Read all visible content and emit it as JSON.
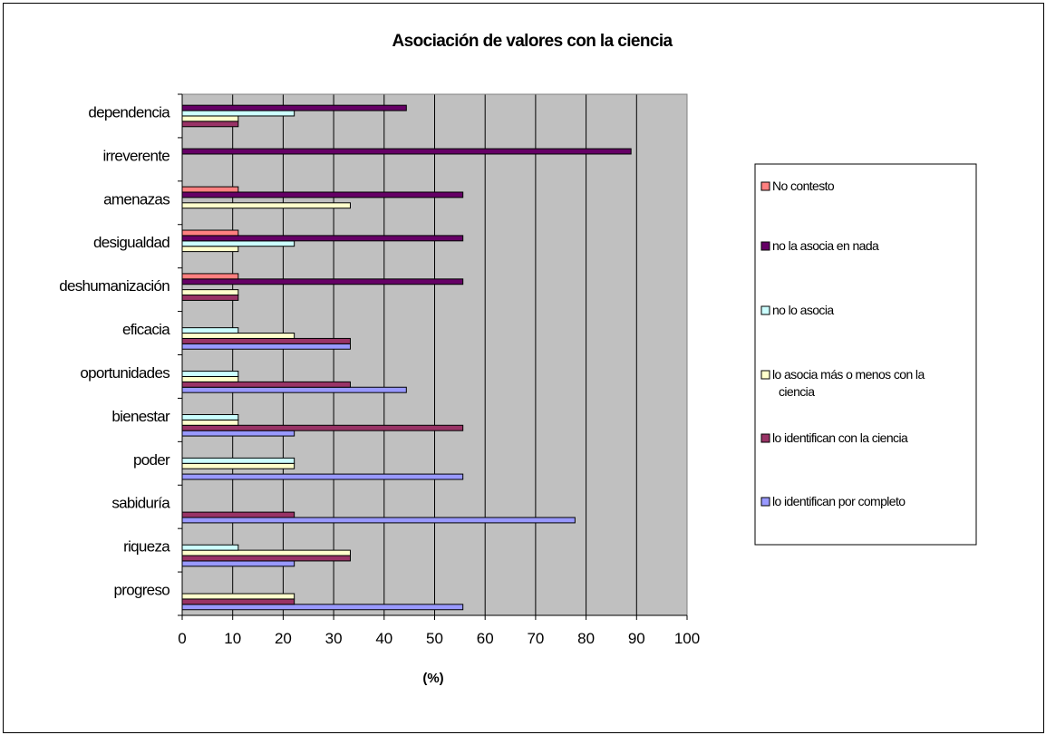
{
  "chart_data": {
    "type": "bar",
    "orientation": "horizontal",
    "title": "Asociación de valores con la ciencia",
    "xlabel": "(%)",
    "ylabel": "",
    "xlim": [
      0,
      100
    ],
    "xticks": [
      "0",
      "10",
      "20",
      "30",
      "40",
      "50",
      "60",
      "70",
      "80",
      "90",
      "100"
    ],
    "grid": true,
    "plot_background": "#c0c0c0",
    "legend_position": "right",
    "categories": [
      "progreso",
      "riqueza",
      "sabiduría",
      "poder",
      "bienestar",
      "oportunidades",
      "eficacia",
      "deshumanización",
      "desigualdad",
      "amenazas",
      "irreverente",
      "dependencia"
    ],
    "series": [
      {
        "name": "lo identifican por completo",
        "color": "#9999ff",
        "values": [
          55.6,
          22.2,
          77.8,
          55.6,
          22.2,
          44.4,
          33.3,
          0,
          0,
          0,
          0,
          0
        ]
      },
      {
        "name": "lo identifican con la ciencia",
        "color": "#993366",
        "values": [
          22.2,
          33.3,
          22.2,
          0,
          55.6,
          33.3,
          33.3,
          11.1,
          0,
          0,
          0,
          11.1
        ]
      },
      {
        "name": "lo asocia más o menos con la ciencia",
        "color": "#ffffcc",
        "values": [
          22.2,
          33.3,
          0,
          22.2,
          11.1,
          11.1,
          22.2,
          11.1,
          11.1,
          33.3,
          0,
          11.1
        ]
      },
      {
        "name": "no lo asocia",
        "color": "#ccffff",
        "values": [
          0,
          11.1,
          0,
          22.2,
          11.1,
          11.1,
          11.1,
          0,
          22.2,
          0,
          0,
          22.2
        ]
      },
      {
        "name": "no la asocia en nada",
        "color": "#660066",
        "values": [
          0,
          0,
          0,
          0,
          0,
          0,
          0,
          55.6,
          55.6,
          55.6,
          88.9,
          44.4
        ]
      },
      {
        "name": "No contesto",
        "color": "#ff8080",
        "values": [
          0,
          0,
          0,
          0,
          0,
          0,
          0,
          11.1,
          11.1,
          11.1,
          0,
          0
        ]
      }
    ],
    "legend_order": [
      "No contesto",
      "no la asocia en nada",
      "no lo asocia",
      "lo asocia más o menos con la ciencia",
      "lo identifican con la ciencia",
      "lo identifican por completo"
    ]
  }
}
